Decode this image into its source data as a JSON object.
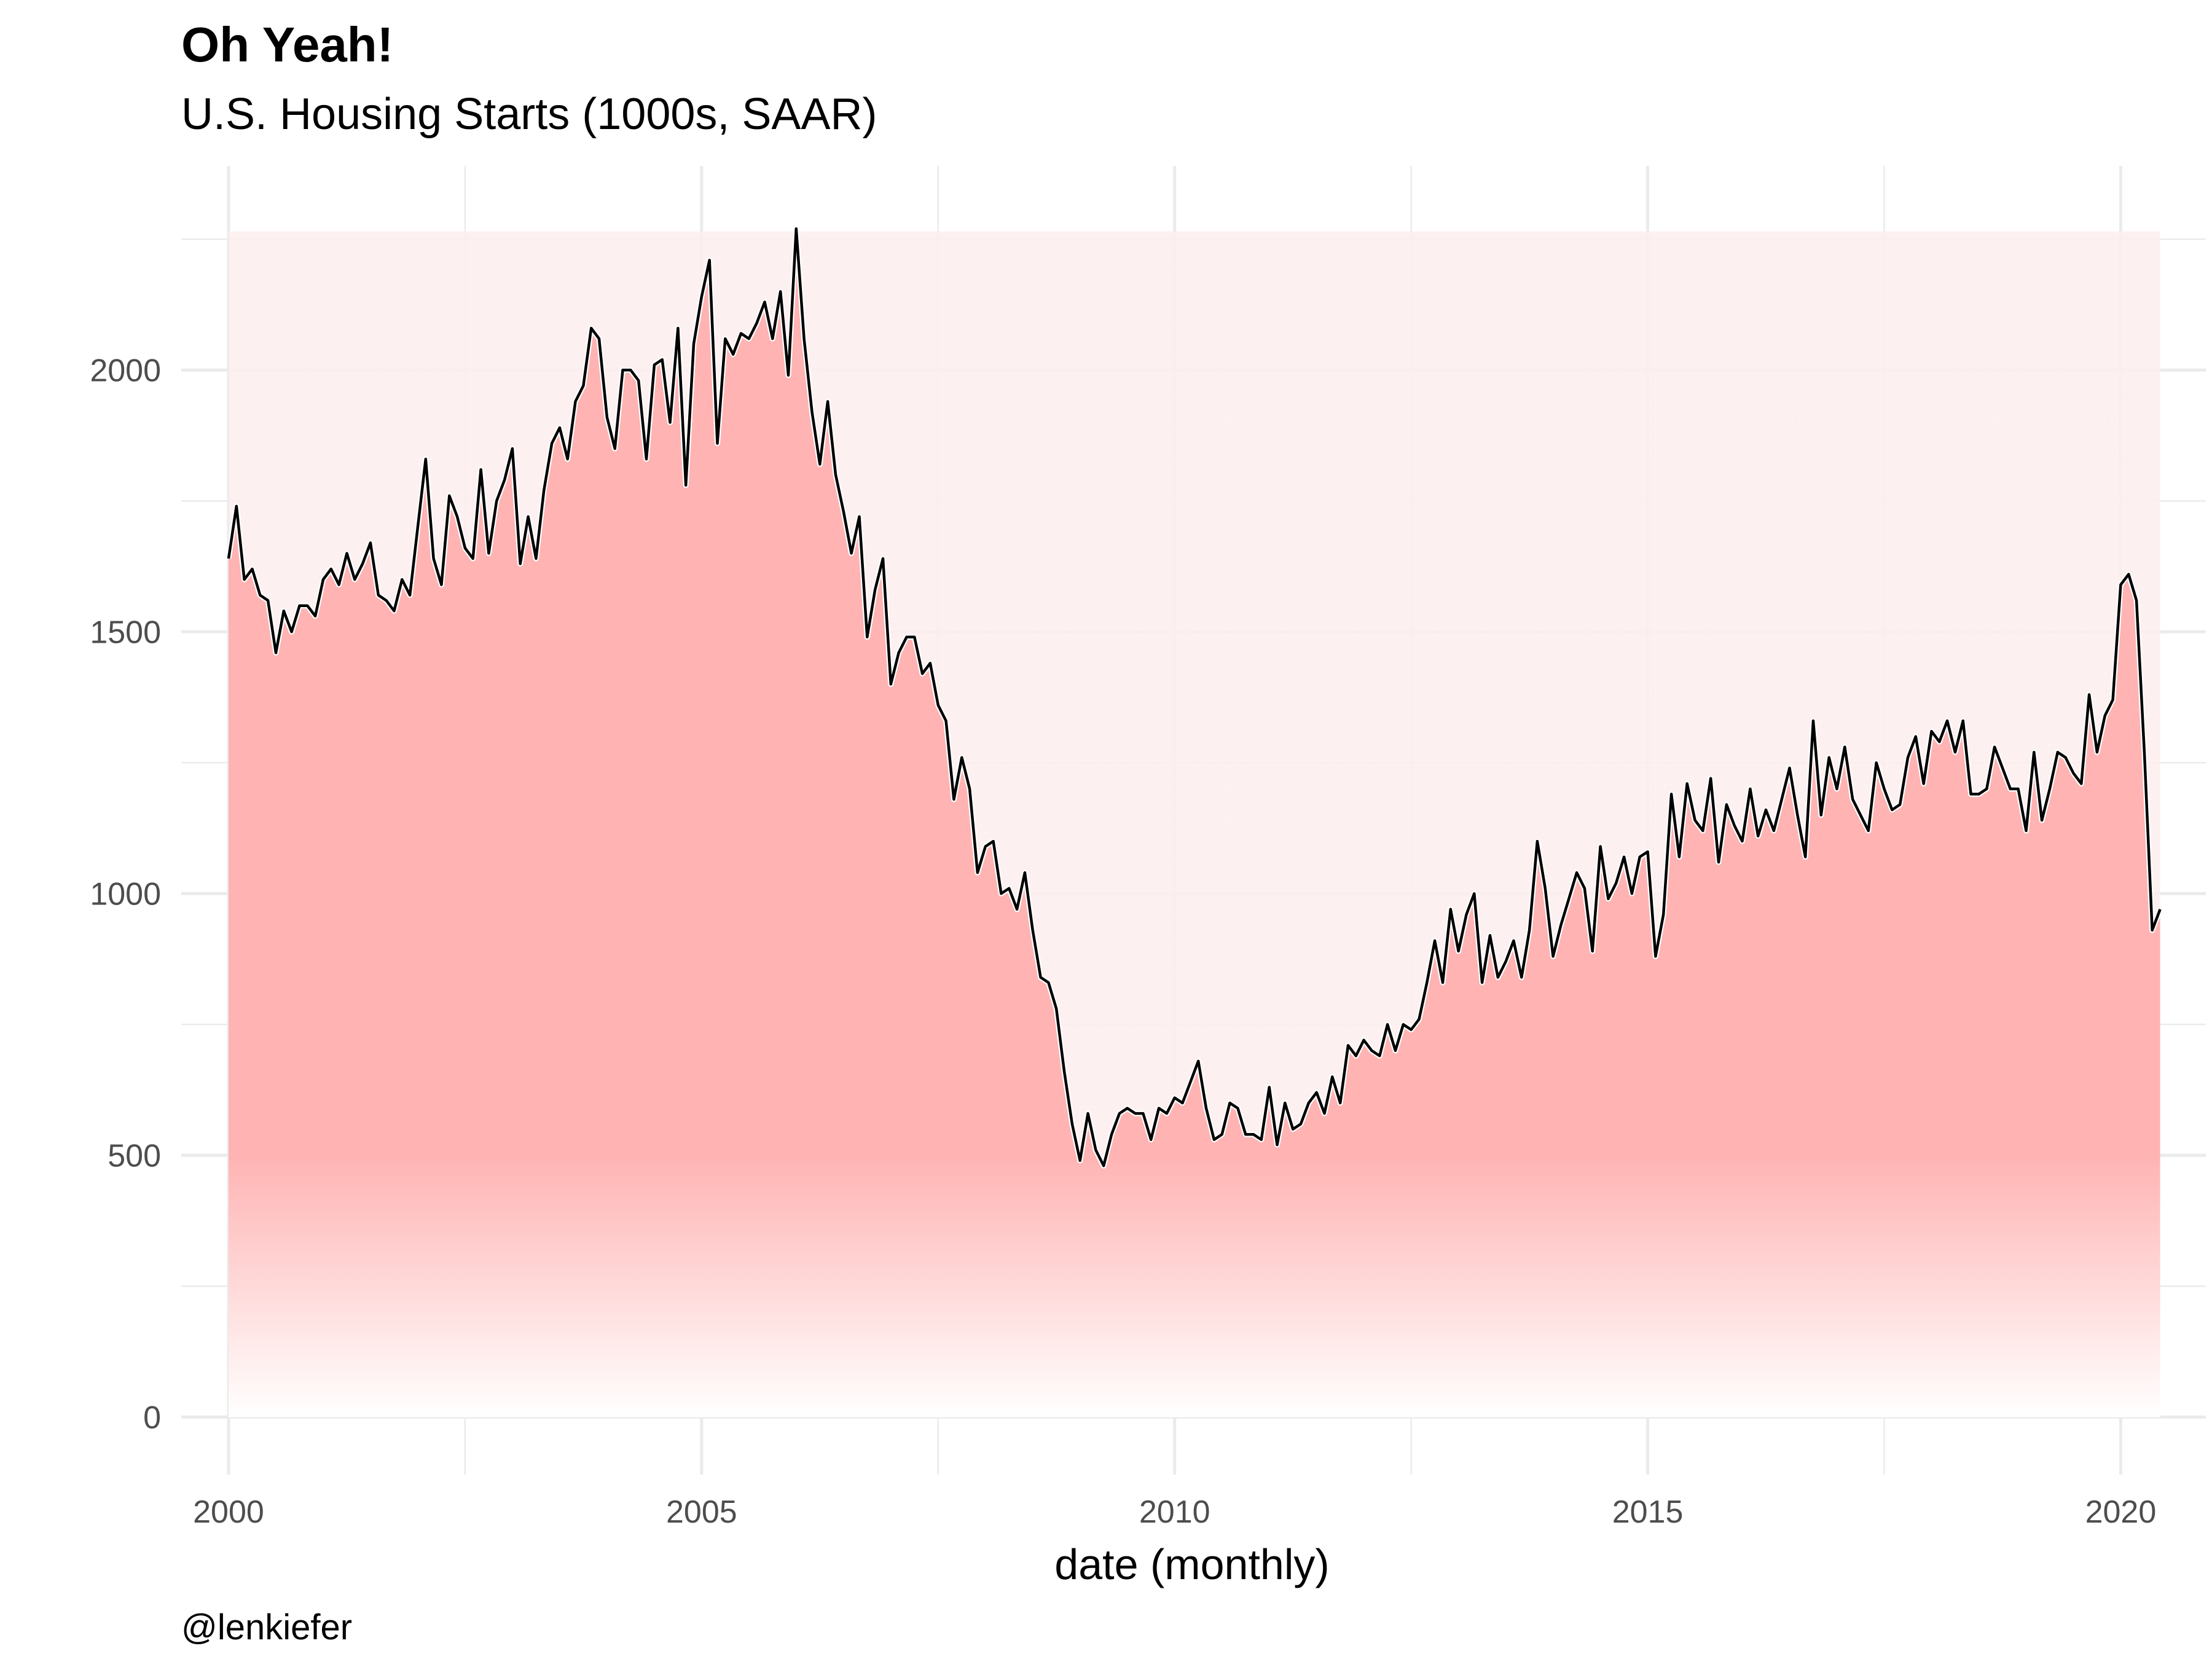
{
  "chart_data": {
    "type": "area",
    "title": "Oh Yeah!",
    "subtitle": "U.S. Housing Starts (1000s, SAAR)",
    "xlabel": "date (monthly)",
    "ylabel": "",
    "caption": "@lenkiefer",
    "xlim": [
      1999.5,
      2020.9
    ],
    "ylim": [
      -110,
      2390
    ],
    "x_ticks": [
      2000,
      2005,
      2010,
      2015,
      2020
    ],
    "x_tick_labels": [
      "2000",
      "2005",
      "2010",
      "2015",
      "2020"
    ],
    "y_ticks": [
      0,
      500,
      1000,
      1500,
      2000
    ],
    "y_tick_labels": [
      "0",
      "500",
      "1000",
      "1500",
      "2000"
    ],
    "grid": true,
    "legend": "none",
    "colors": {
      "background_band": "#fdeeee",
      "fill_top": "#ffb3b3",
      "fill_bottom": "#ffffff",
      "line": "#000000",
      "grid": "#ebebeb"
    },
    "x_start": "2000-01",
    "x_frequency": "monthly",
    "series": [
      {
        "values": [
          1640,
          1740,
          1600,
          1620,
          1570,
          1560,
          1460,
          1540,
          1500,
          1550,
          1550,
          1530,
          1600,
          1620,
          1590,
          1650,
          1600,
          1630,
          1670,
          1570,
          1560,
          1540,
          1600,
          1570,
          1700,
          1830,
          1640,
          1590,
          1760,
          1720,
          1660,
          1640,
          1810,
          1650,
          1750,
          1790,
          1850,
          1630,
          1720,
          1640,
          1770,
          1860,
          1890,
          1830,
          1940,
          1970,
          2080,
          2060,
          1910,
          1850,
          2000,
          2000,
          1980,
          1830,
          2010,
          2020,
          1900,
          2080,
          1780,
          2050,
          2140,
          2210,
          1860,
          2060,
          2030,
          2070,
          2060,
          2090,
          2130,
          2060,
          2150,
          1990,
          2270,
          2060,
          1920,
          1820,
          1940,
          1800,
          1730,
          1650,
          1720,
          1490,
          1580,
          1640,
          1400,
          1460,
          1490,
          1490,
          1420,
          1440,
          1360,
          1330,
          1180,
          1260,
          1200,
          1040,
          1090,
          1100,
          1000,
          1010,
          970,
          1040,
          930,
          840,
          830,
          780,
          660,
          560,
          490,
          580,
          510,
          480,
          540,
          580,
          590,
          580,
          580,
          530,
          590,
          580,
          610,
          600,
          640,
          680,
          590,
          530,
          540,
          600,
          590,
          540,
          540,
          530,
          630,
          520,
          600,
          550,
          560,
          600,
          620,
          580,
          650,
          600,
          710,
          690,
          720,
          700,
          690,
          750,
          700,
          750,
          740,
          760,
          830,
          910,
          830,
          970,
          890,
          960,
          1000,
          830,
          920,
          840,
          870,
          910,
          840,
          930,
          1100,
          1010,
          880,
          940,
          990,
          1040,
          1010,
          890,
          1090,
          990,
          1020,
          1070,
          1000,
          1070,
          1080,
          880,
          960,
          1190,
          1070,
          1210,
          1140,
          1120,
          1220,
          1060,
          1170,
          1130,
          1100,
          1200,
          1110,
          1160,
          1120,
          1180,
          1240,
          1150,
          1070,
          1330,
          1150,
          1260,
          1200,
          1280,
          1180,
          1150,
          1120,
          1250,
          1200,
          1160,
          1170,
          1260,
          1300,
          1210,
          1310,
          1290,
          1330,
          1270,
          1330,
          1190,
          1190,
          1200,
          1280,
          1240,
          1200,
          1200,
          1120,
          1270,
          1140,
          1200,
          1270,
          1260,
          1230,
          1210,
          1380,
          1270,
          1340,
          1370,
          1590,
          1610,
          1560,
          1270,
          930,
          970
        ]
      }
    ],
    "band_max": 2265
  }
}
